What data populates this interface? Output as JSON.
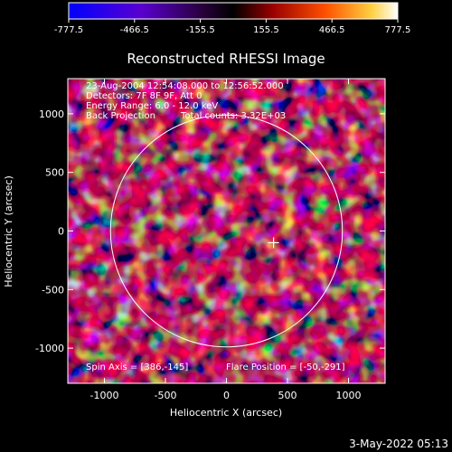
{
  "colorbar": {
    "ticks": [
      "-777.5",
      "-466.5",
      "-155.5",
      "155.5",
      "466.5",
      "777.5"
    ],
    "colors": [
      "#0000ff",
      "#6a00c0",
      "#2a0030",
      "#000000",
      "#b01000",
      "#ff5a00",
      "#ffff80",
      "#ffffff"
    ]
  },
  "plot": {
    "title": "Reconstructed RHESSI Image",
    "info_lines": [
      "23-Aug-2004 12:54:08.000 to 12:56:52.000",
      "Detectors: 7F 8F 9F, Att 0",
      "Energy Range: 6.0 - 12.0 keV"
    ],
    "method": "Back Projection",
    "total_counts": "Total counts: 3.32E+03",
    "spin_axis": "Spin Axis = [386,-145]",
    "flare_position": "Flare Position = [-50,-291]",
    "xlabel": "Heliocentric X (arcsec)",
    "ylabel": "Heliocentric Y (arcsec)",
    "x_ticks": [
      "-1000",
      "-500",
      "0",
      "500",
      "1000"
    ],
    "y_ticks": [
      "1000",
      "500",
      "0",
      "-500",
      "-1000"
    ],
    "axis_range_arcsec": {
      "x": [
        -1300,
        1300
      ],
      "y": [
        -1300,
        1300
      ]
    },
    "solar_limb_radius_arcsec": 950,
    "marker_position_arcsec": [
      386,
      -100
    ]
  },
  "footer": {
    "timestamp": "3-May-2022 05:13"
  }
}
